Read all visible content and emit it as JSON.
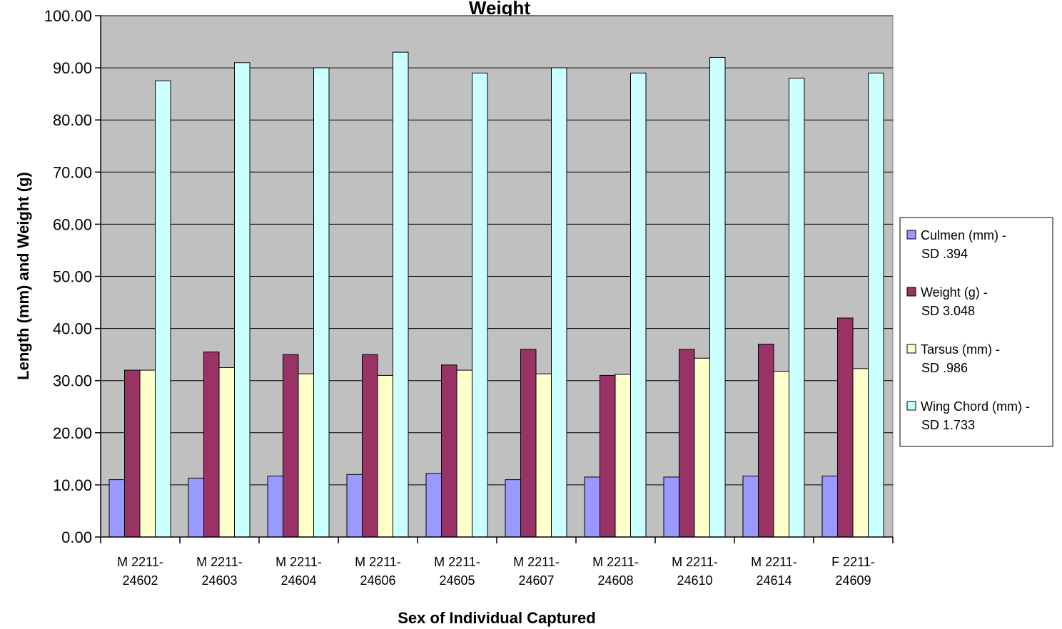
{
  "chart_data": {
    "type": "bar",
    "title": "Weight",
    "xlabel": "Sex of Individual Captured",
    "ylabel": "Length (mm) and Weight (g)",
    "ylim": [
      0,
      100
    ],
    "y_ticks": [
      "0.00",
      "10.00",
      "20.00",
      "30.00",
      "40.00",
      "50.00",
      "60.00",
      "70.00",
      "80.00",
      "90.00",
      "100.00"
    ],
    "grid": true,
    "legend_position": "right",
    "categories": [
      [
        "M 2211-",
        "24602"
      ],
      [
        "M 2211-",
        "24603"
      ],
      [
        "M 2211-",
        "24604"
      ],
      [
        "M 2211-",
        "24606"
      ],
      [
        "M 2211-",
        "24605"
      ],
      [
        "M 2211-",
        "24607"
      ],
      [
        "M 2211-",
        "24608"
      ],
      [
        "M 2211-",
        "24610"
      ],
      [
        "M 2211-",
        "24614"
      ],
      [
        "F 2211-",
        "24609"
      ]
    ],
    "series": [
      {
        "name": [
          "Culmen (mm) -",
          "SD .394"
        ],
        "color": "#9999ff",
        "values": [
          11.0,
          11.3,
          11.7,
          12.0,
          12.2,
          11.0,
          11.5,
          11.5,
          11.7,
          11.7
        ]
      },
      {
        "name": [
          "Weight (g) -",
          "SD 3.048"
        ],
        "color": "#993366",
        "values": [
          32.0,
          35.5,
          35.0,
          35.0,
          33.0,
          36.0,
          31.0,
          36.0,
          37.0,
          42.0
        ]
      },
      {
        "name": [
          "Tarsus (mm) -",
          "SD .986"
        ],
        "color": "#ffffcc",
        "values": [
          32.0,
          32.5,
          31.3,
          31.0,
          32.0,
          31.3,
          31.2,
          34.3,
          31.8,
          32.3
        ]
      },
      {
        "name": [
          "Wing Chord (mm) -",
          "SD 1.733"
        ],
        "color": "#ccffff",
        "values": [
          87.5,
          91.0,
          90.0,
          93.0,
          89.0,
          90.0,
          89.0,
          92.0,
          88.0,
          89.0
        ]
      }
    ],
    "plot_background": "#c0c0c0"
  }
}
